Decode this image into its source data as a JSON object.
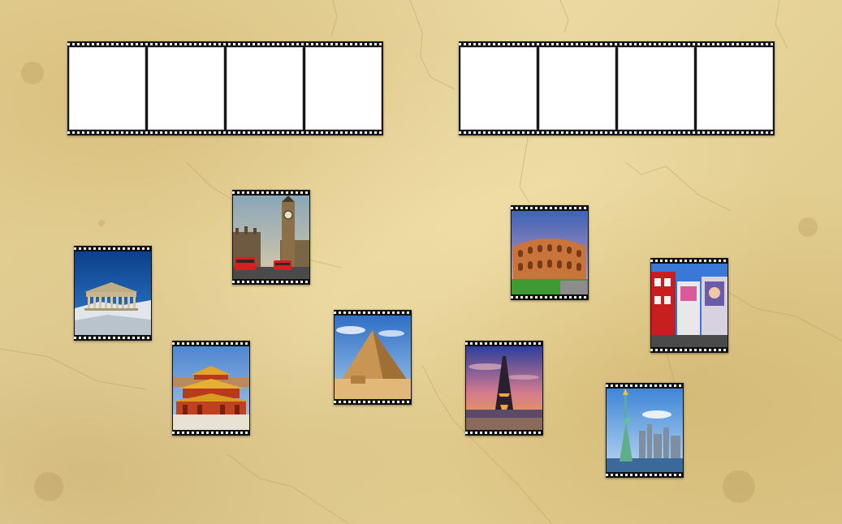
{
  "board": {
    "strips": [
      {
        "id": "left",
        "slots": 4
      },
      {
        "id": "right",
        "slots": 4
      }
    ]
  },
  "cards": [
    {
      "id": "parthenon",
      "icon": "parthenon-photo"
    },
    {
      "id": "big-ben",
      "icon": "big-ben-photo"
    },
    {
      "id": "forbidden-city",
      "icon": "forbidden-city-photo"
    },
    {
      "id": "pyramid",
      "icon": "pyramid-photo"
    },
    {
      "id": "colosseum",
      "icon": "colosseum-photo"
    },
    {
      "id": "eiffel-tower",
      "icon": "eiffel-tower-photo"
    },
    {
      "id": "tokyo-street",
      "icon": "city-street-photo"
    },
    {
      "id": "statue-of-liberty",
      "icon": "statue-of-liberty-photo"
    }
  ],
  "colors": {
    "parchment": "#e6d49a",
    "film": "#161616",
    "slot": "#ffffff"
  }
}
